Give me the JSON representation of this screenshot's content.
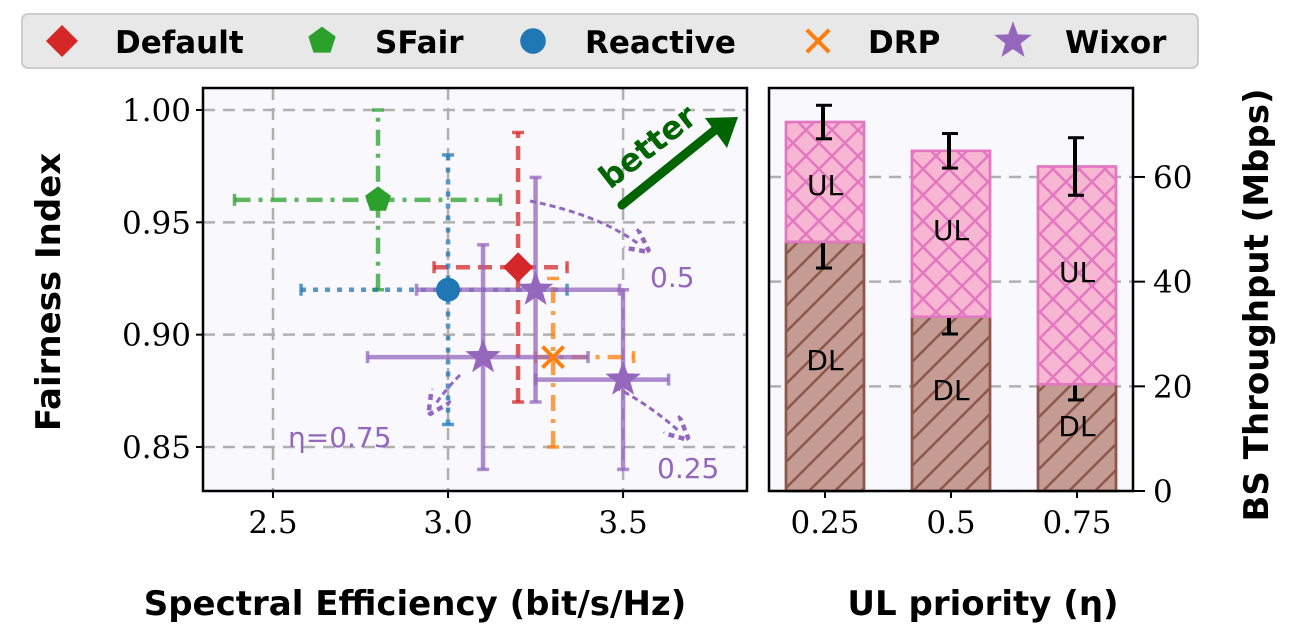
{
  "chart_data": [
    {
      "type": "scatter",
      "xlabel": "Spectral Efficiency (bit/s/Hz)",
      "ylabel": "Fairness Index",
      "xlim": [
        2.3,
        3.854
      ],
      "ylim": [
        0.8304,
        1.0098
      ],
      "xticks": [
        2.5,
        3.0,
        3.5
      ],
      "xtick_labels": [
        "2.5",
        "3.0",
        "3.5"
      ],
      "yticks": [
        0.85,
        0.9,
        0.95,
        1.0
      ],
      "ytick_labels": [
        "0.85",
        "0.90",
        "0.95",
        "1.00"
      ],
      "grid": true,
      "series": [
        {
          "name": "Default",
          "color": "#d62728",
          "marker": "diamond",
          "line": "dashed",
          "points": [
            {
              "x": 3.2,
              "y": 0.93,
              "xlo": 2.96,
              "xhi": 3.34,
              "ylo": 0.87,
              "yhi": 0.99
            }
          ]
        },
        {
          "name": "SFair",
          "color": "#2ca02c",
          "marker": "pentagon",
          "line": "dashdot",
          "points": [
            {
              "x": 2.8,
              "y": 0.96,
              "xlo": 2.39,
              "xhi": 3.15,
              "ylo": 0.92,
              "yhi": 1.0
            }
          ]
        },
        {
          "name": "Reactive",
          "color": "#1f77b4",
          "marker": "circle",
          "line": "dotted",
          "points": [
            {
              "x": 3.0,
              "y": 0.92,
              "xlo": 2.58,
              "xhi": 3.34,
              "ylo": 0.86,
              "yhi": 0.98
            }
          ]
        },
        {
          "name": "DRP",
          "color": "#ff7f0e",
          "marker": "x",
          "line": "dashdot",
          "points": [
            {
              "x": 3.3,
              "y": 0.89,
              "xlo": 3.25,
              "xhi": 3.53,
              "ylo": 0.85,
              "yhi": 0.925
            }
          ]
        },
        {
          "name": "Wixor",
          "color": "#9467bd",
          "marker": "star",
          "line": "solid",
          "points": [
            {
              "x": 3.25,
              "y": 0.92,
              "xlo": 2.91,
              "xhi": 3.49,
              "ylo": 0.87,
              "yhi": 0.97
            },
            {
              "x": 3.1,
              "y": 0.89,
              "xlo": 2.77,
              "xhi": 3.4,
              "ylo": 0.84,
              "yhi": 0.94
            },
            {
              "x": 3.5,
              "y": 0.88,
              "xlo": 3.25,
              "xhi": 3.63,
              "ylo": 0.84,
              "yhi": 0.92
            }
          ]
        }
      ],
      "annotations": {
        "better": "better",
        "eta_075": "η=0.75",
        "eta_05": "0.5",
        "eta_025": "0.25"
      }
    },
    {
      "type": "bar",
      "stacked": true,
      "xlabel": "UL priority (η)",
      "ylabel": "BS Throughput (Mbps)",
      "categories": [
        "0.25",
        "0.5",
        "0.75"
      ],
      "ylim": [
        0,
        77
      ],
      "yticks": [
        0,
        20,
        40,
        60
      ],
      "ytick_labels": [
        "0",
        "20",
        "40",
        "60"
      ],
      "series": [
        {
          "name": "DL",
          "label": "DL",
          "color": "#c49c94",
          "edge": "#8c564b",
          "values": [
            47.6,
            33.3,
            20.4
          ],
          "err": [
            5,
            3.3,
            3
          ]
        },
        {
          "name": "UL",
          "label": "UL",
          "color": "#f7b6d2",
          "edge": "#e377c2",
          "values": [
            22.9,
            31.7,
            41.6
          ],
          "err": [
            3.2,
            3.3,
            5.5
          ]
        }
      ]
    }
  ],
  "legend": [
    "Default",
    "SFair",
    "Reactive",
    "DRP",
    "Wixor"
  ]
}
